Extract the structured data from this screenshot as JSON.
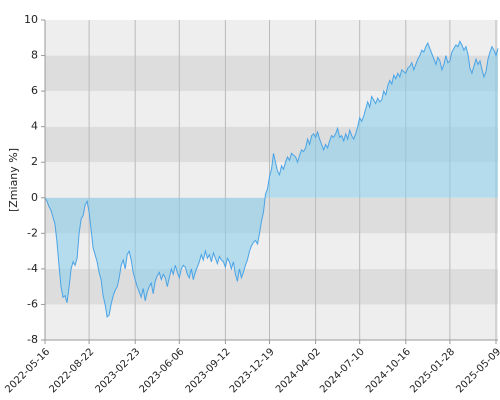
{
  "chart_data": {
    "type": "area",
    "ylabel": "[Zmiany %]",
    "color": "#4aa3e6",
    "fill_color": "#87ceeb",
    "band_colors": [
      "#eeeeee",
      "#dddddd"
    ],
    "grid": true,
    "xlim": [
      0,
      226
    ],
    "xticks": [
      {
        "value": 0,
        "label": "2022-05-16"
      },
      {
        "value": 22,
        "label": "2022-08-22"
      },
      {
        "value": 45,
        "label": "2023-02-23"
      },
      {
        "value": 67,
        "label": "2023-06-06"
      },
      {
        "value": 90,
        "label": "2023-09-12"
      },
      {
        "value": 112,
        "label": "2023-12-19"
      },
      {
        "value": 135,
        "label": "2024-04-02"
      },
      {
        "value": 157,
        "label": "2024-07-10"
      },
      {
        "value": 180,
        "label": "2024-10-16"
      },
      {
        "value": 202,
        "label": "2025-01-28"
      },
      {
        "value": 225,
        "label": "2025-05-09"
      }
    ],
    "ylim": [
      -8,
      10
    ],
    "yticks": [
      -8,
      -6,
      -4,
      -2,
      0,
      2,
      4,
      6,
      8,
      10
    ],
    "values": [
      0,
      -0.2,
      -0.5,
      -0.7,
      -1.1,
      -1.5,
      -2.5,
      -3.8,
      -5.0,
      -5.6,
      -5.5,
      -5.9,
      -5.0,
      -4.0,
      -3.6,
      -3.8,
      -3.4,
      -2.0,
      -1.2,
      -1.0,
      -0.4,
      -0.2,
      -0.8,
      -1.8,
      -2.8,
      -3.2,
      -3.6,
      -4.2,
      -4.6,
      -5.5,
      -6.0,
      -6.7,
      -6.6,
      -6.0,
      -5.5,
      -5.2,
      -5.0,
      -4.5,
      -3.8,
      -3.5,
      -4.0,
      -3.2,
      -3.0,
      -3.5,
      -4.2,
      -4.6,
      -5.0,
      -5.3,
      -5.6,
      -5.1,
      -5.8,
      -5.3,
      -5.0,
      -4.8,
      -5.4,
      -4.7,
      -4.4,
      -4.2,
      -4.6,
      -4.3,
      -4.5,
      -5.0,
      -4.5,
      -4.0,
      -4.3,
      -3.8,
      -4.2,
      -4.5,
      -4.0,
      -3.8,
      -3.9,
      -4.3,
      -4.5,
      -4.0,
      -4.6,
      -4.2,
      -3.9,
      -3.6,
      -3.2,
      -3.5,
      -3.0,
      -3.4,
      -3.2,
      -3.6,
      -3.1,
      -3.4,
      -3.7,
      -3.3,
      -3.5,
      -3.6,
      -3.9,
      -3.4,
      -3.6,
      -4.0,
      -3.6,
      -4.3,
      -4.7,
      -4.0,
      -4.5,
      -4.2,
      -3.8,
      -3.5,
      -3.0,
      -2.7,
      -2.5,
      -2.4,
      -2.6,
      -2.0,
      -1.3,
      -0.8,
      0.2,
      0.5,
      1.2,
      1.6,
      2.5,
      2.0,
      1.5,
      1.3,
      1.8,
      1.6,
      2.0,
      2.3,
      2.1,
      2.5,
      2.4,
      2.3,
      2.0,
      2.4,
      2.7,
      2.6,
      2.8,
      3.3,
      3.0,
      3.5,
      3.6,
      3.4,
      3.7,
      3.3,
      3.0,
      2.7,
      3.0,
      2.8,
      3.2,
      3.5,
      3.4,
      3.6,
      3.9,
      3.4,
      3.5,
      3.2,
      3.6,
      3.3,
      3.8,
      3.5,
      3.3,
      3.6,
      4.0,
      4.5,
      4.3,
      4.6,
      5.0,
      5.4,
      5.1,
      5.7,
      5.5,
      5.3,
      5.6,
      5.4,
      5.5,
      6.0,
      5.8,
      6.3,
      6.6,
      6.4,
      6.9,
      6.7,
      7.0,
      6.8,
      7.2,
      7.1,
      7.0,
      7.3,
      7.4,
      7.6,
      7.2,
      7.5,
      7.8,
      8.0,
      8.3,
      8.2,
      8.5,
      8.7,
      8.4,
      8.1,
      7.8,
      7.5,
      7.9,
      7.7,
      7.2,
      7.5,
      8.0,
      7.6,
      7.7,
      8.2,
      8.4,
      8.6,
      8.5,
      8.8,
      8.6,
      8.3,
      8.5,
      8.1,
      7.3,
      7.0,
      7.4,
      7.8,
      7.5,
      7.7,
      7.2,
      6.8,
      7.1,
      7.8,
      8.2,
      8.5,
      8.3,
      8.0,
      8.4
    ]
  }
}
